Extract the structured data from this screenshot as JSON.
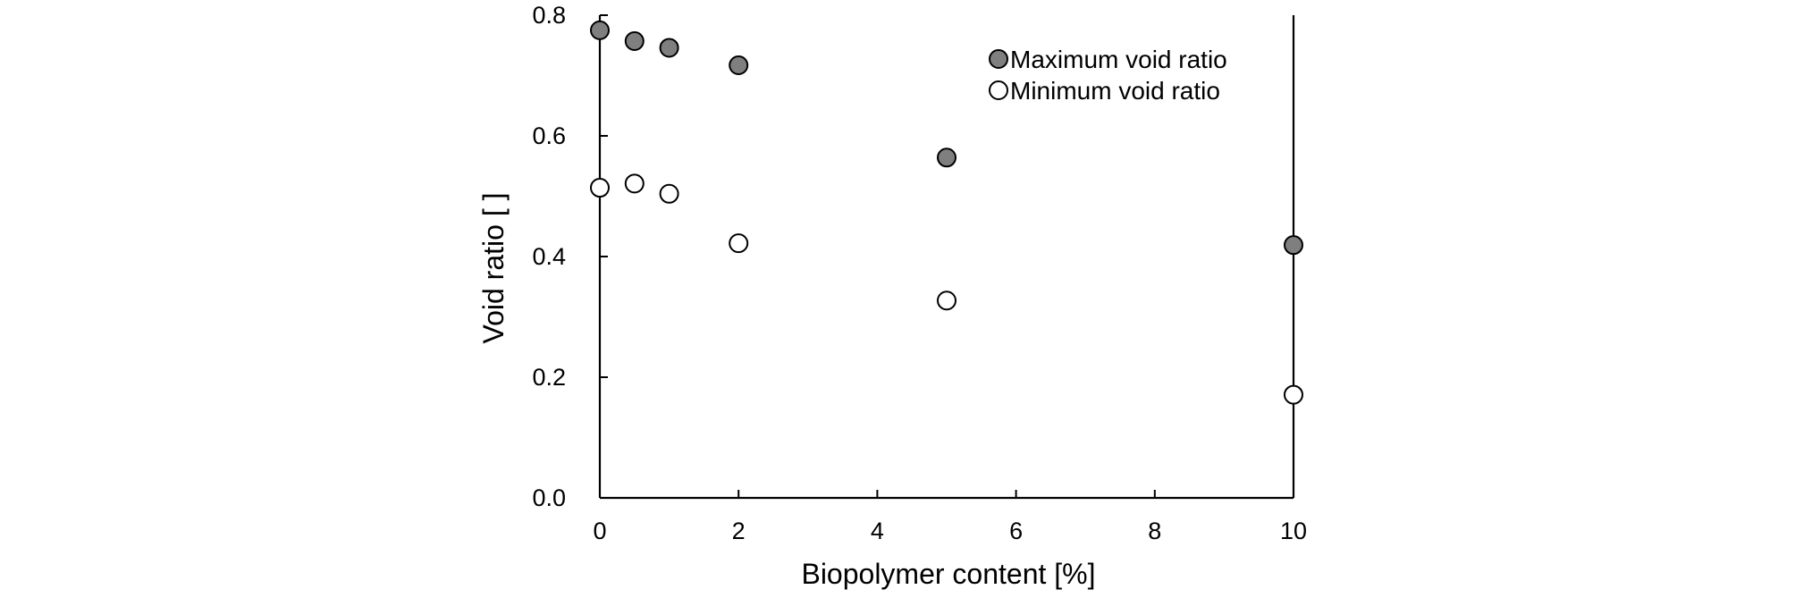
{
  "chart_data": {
    "type": "scatter",
    "title": "",
    "xlabel": "Biopolymer content [%]",
    "ylabel": "Void ratio [ ]",
    "xlim": [
      0,
      10
    ],
    "ylim": [
      0,
      0.8
    ],
    "xticks": [
      0,
      2,
      4,
      6,
      8,
      10
    ],
    "yticks": [
      0,
      0.2,
      0.4,
      0.6,
      0.8
    ],
    "xtick_labels": [
      "0",
      "2",
      "4",
      "6",
      "8",
      "10"
    ],
    "ytick_labels": [
      "0.0",
      "0.2",
      "0.4",
      "0.6",
      "0.8"
    ],
    "grid": false,
    "legend_position": "top-right",
    "series": [
      {
        "name": "Maximum void ratio",
        "marker_fill": "#7f7f7f",
        "x": [
          0,
          0.5,
          1,
          2,
          5,
          10
        ],
        "y": [
          0.775,
          0.757,
          0.746,
          0.717,
          0.564,
          0.419
        ]
      },
      {
        "name": "Minimum void ratio",
        "marker_fill": "#ffffff",
        "x": [
          0,
          0.5,
          1,
          2,
          5,
          10
        ],
        "y": [
          0.514,
          0.521,
          0.504,
          0.422,
          0.327,
          0.171
        ]
      }
    ]
  }
}
